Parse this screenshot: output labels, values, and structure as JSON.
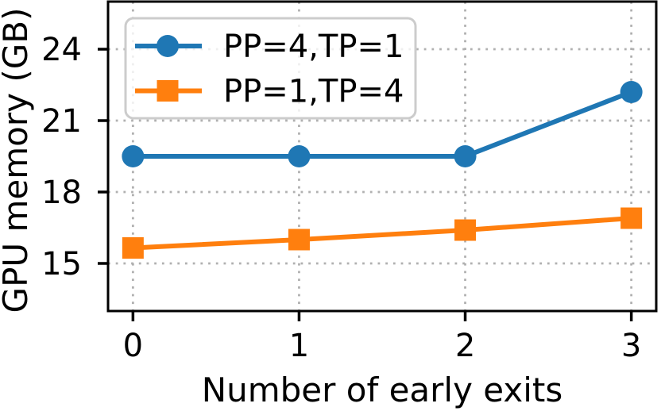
{
  "chart_data": {
    "type": "line",
    "title": "",
    "xlabel": "Number of early exits",
    "ylabel": "GPU memory (GB)",
    "x": [
      0,
      1,
      2,
      3
    ],
    "x_ticks": [
      0,
      1,
      2,
      3
    ],
    "y_ticks": [
      15,
      18,
      21,
      24
    ],
    "xlim": [
      -0.15,
      3.15
    ],
    "ylim": [
      13,
      26
    ],
    "grid": {
      "visible": true,
      "style": "dotted",
      "color": "#b0b0b0"
    },
    "legend": {
      "position": "upper left",
      "border_color": "#cccccc",
      "background": "#ffffff"
    },
    "axis_color": "#000000",
    "background": "#ffffff",
    "series": [
      {
        "name": "PP=4,TP=1",
        "color": "#1f77b4",
        "marker": "circle",
        "values": [
          19.5,
          19.5,
          19.5,
          22.2
        ]
      },
      {
        "name": "PP=1,TP=4",
        "color": "#ff7f0e",
        "marker": "square",
        "values": [
          15.65,
          16.0,
          16.4,
          16.9
        ]
      }
    ]
  }
}
